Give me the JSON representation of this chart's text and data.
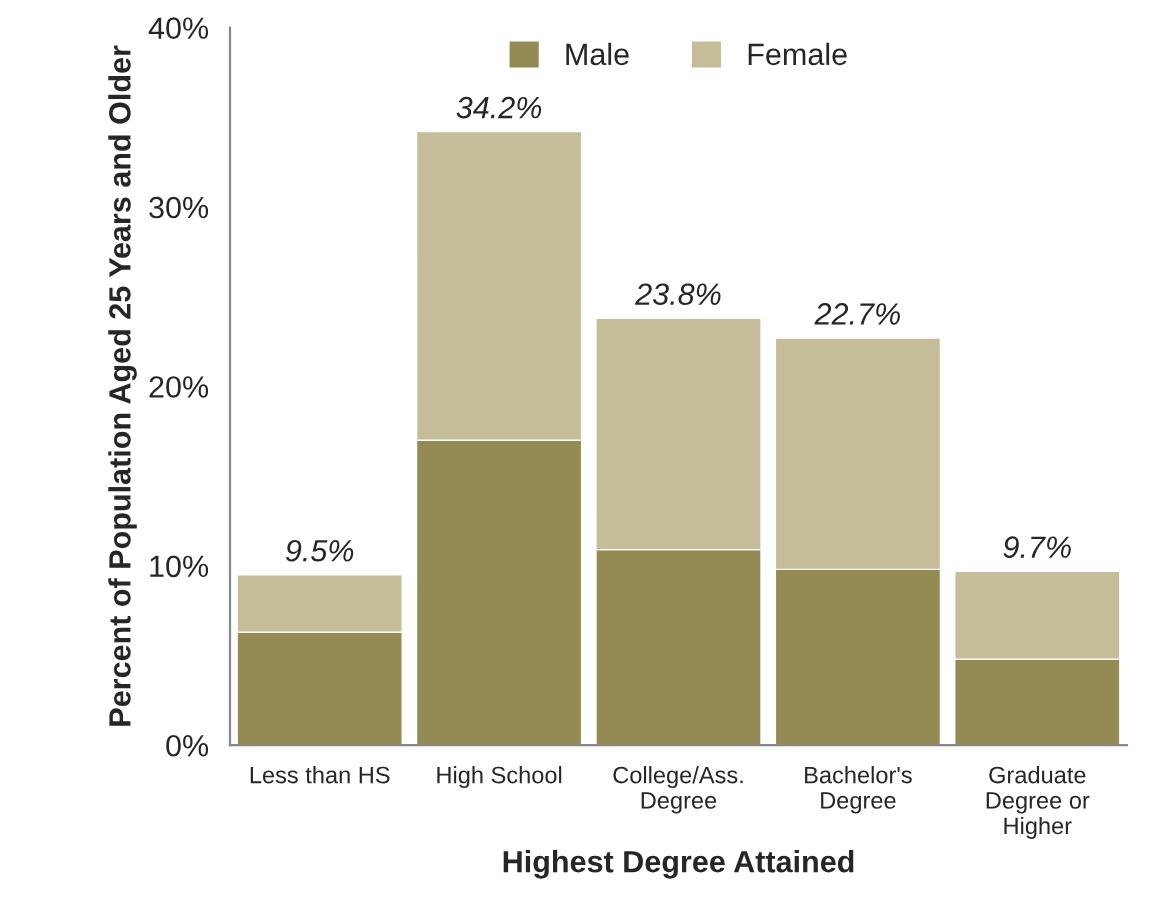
{
  "chart_data": {
    "type": "bar",
    "stacked": true,
    "xlabel": "Highest Degree Attained",
    "ylabel": "Percent of Population Aged 25 Years and Older",
    "categories": [
      "Less than HS",
      "High School",
      "College/Ass.\nDegree",
      "Bachelor's\nDegree",
      "Graduate\nDegree or\nHigher"
    ],
    "series": [
      {
        "name": "Male",
        "color": "#948a54",
        "values": [
          6.3,
          17.0,
          10.9,
          9.8,
          4.8
        ]
      },
      {
        "name": "Female",
        "color": "#c4bd97",
        "values": [
          3.2,
          17.2,
          12.9,
          12.9,
          4.9
        ]
      }
    ],
    "totals": [
      "9.5%",
      "34.2%",
      "23.8%",
      "22.7%",
      "9.7%"
    ],
    "ylim": [
      0,
      40
    ],
    "yticks": [
      {
        "value": 0,
        "label": "0%"
      },
      {
        "value": 10,
        "label": "10%"
      },
      {
        "value": 20,
        "label": "20%"
      },
      {
        "value": 30,
        "label": "30%"
      },
      {
        "value": 40,
        "label": "40%"
      }
    ],
    "grid": false,
    "legend": "top"
  }
}
